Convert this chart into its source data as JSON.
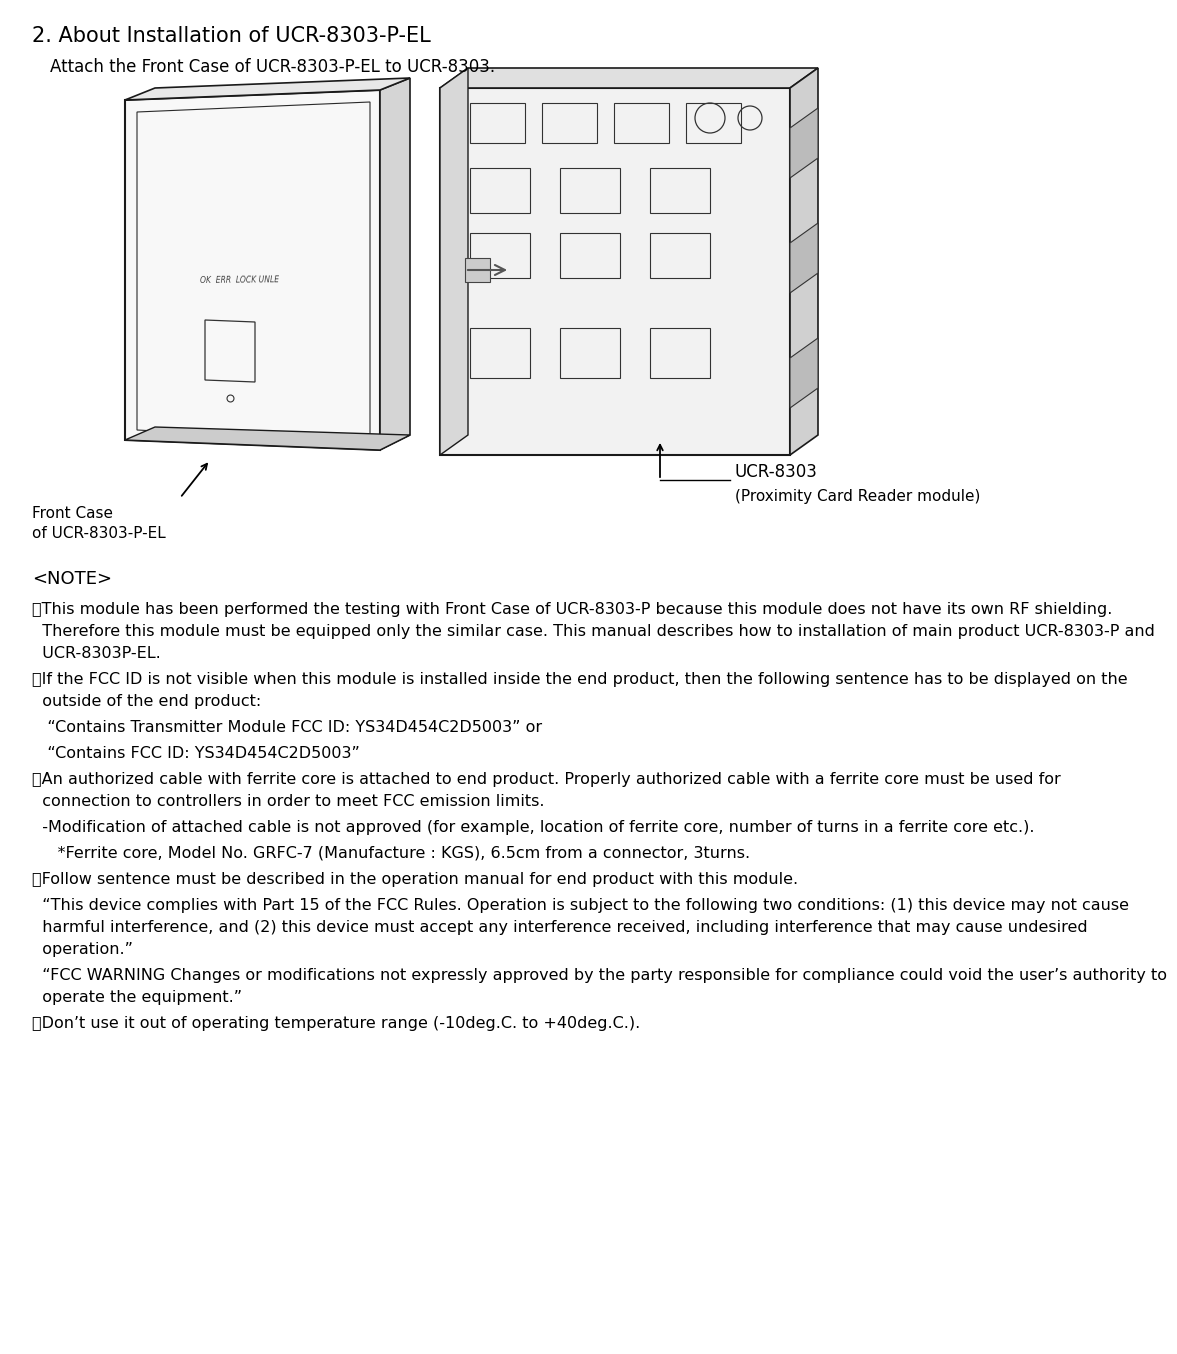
{
  "title": "2. About Installation of UCR-8303-P-EL",
  "subtitle": "    Attach the Front Case of UCR-8303-P-EL to UCR-8303.",
  "ucr_label": "UCR-8303",
  "ucr_sublabel": "(Proximity Card Reader module)",
  "front_case_line1": "Front Case",
  "front_case_line2": "of UCR-8303-P-EL",
  "note_header": "<NOTE>",
  "note_blocks": [
    {
      "lines": [
        "・This module has been performed the testing with Front Case of UCR-8303-P because this module does not have its own RF shielding. Therefore this module must be equipped only the similar case. This manual describes how to installation of main product UCR-8303-P and UCR-8303P-EL."
      ],
      "indent": 0
    },
    {
      "lines": [
        "・If the FCC ID is not visible when this module is installed inside the end product, then the following sentence has to be displayed on the outside of the end product:"
      ],
      "indent": 0
    },
    {
      "lines": [
        "   “Contains Transmitter Module FCC ID: YS34D454C2D5003” or"
      ],
      "indent": 0
    },
    {
      "lines": [
        "   “Contains FCC ID: YS34D454C2D5003”"
      ],
      "indent": 0
    },
    {
      "lines": [
        "・An authorized cable with ferrite core is attached to end product. Properly authorized cable with a ferrite core must be used for connection to controllers in order to meet FCC emission limits."
      ],
      "indent": 0
    },
    {
      "lines": [
        "  -Modification of attached cable is not approved (for example, location of ferrite core, number of turns in a ferrite core etc.)."
      ],
      "indent": 0
    },
    {
      "lines": [
        "     *Ferrite core, Model No. GRFC-7 (Manufacture : KGS), 6.5cm from a connector, 3turns."
      ],
      "indent": 0
    },
    {
      "lines": [
        "・Follow sentence must be described in the operation manual for end product with this module."
      ],
      "indent": 0
    },
    {
      "lines": [
        "  “This device complies with Part 15 of the FCC Rules. Operation is subject to the following two conditions: (1) this device may not cause harmful interference, and (2) this device must accept any interference received, including interference that may cause undesired operation.”"
      ],
      "indent": 0
    },
    {
      "lines": [
        "  “FCC WARNING Changes or modifications not expressly approved by the party responsible for compliance could void the user’s authority to operate the equipment.”"
      ],
      "indent": 0
    },
    {
      "lines": [
        "・Don’t use it out of operating temperature range (-10deg.C. to +40deg.C.)."
      ],
      "indent": 0
    }
  ],
  "bg_color": "#ffffff",
  "text_color": "#000000",
  "title_fontsize": 15,
  "subtitle_fontsize": 12,
  "note_fontsize": 11.5,
  "note_header_fontsize": 13
}
